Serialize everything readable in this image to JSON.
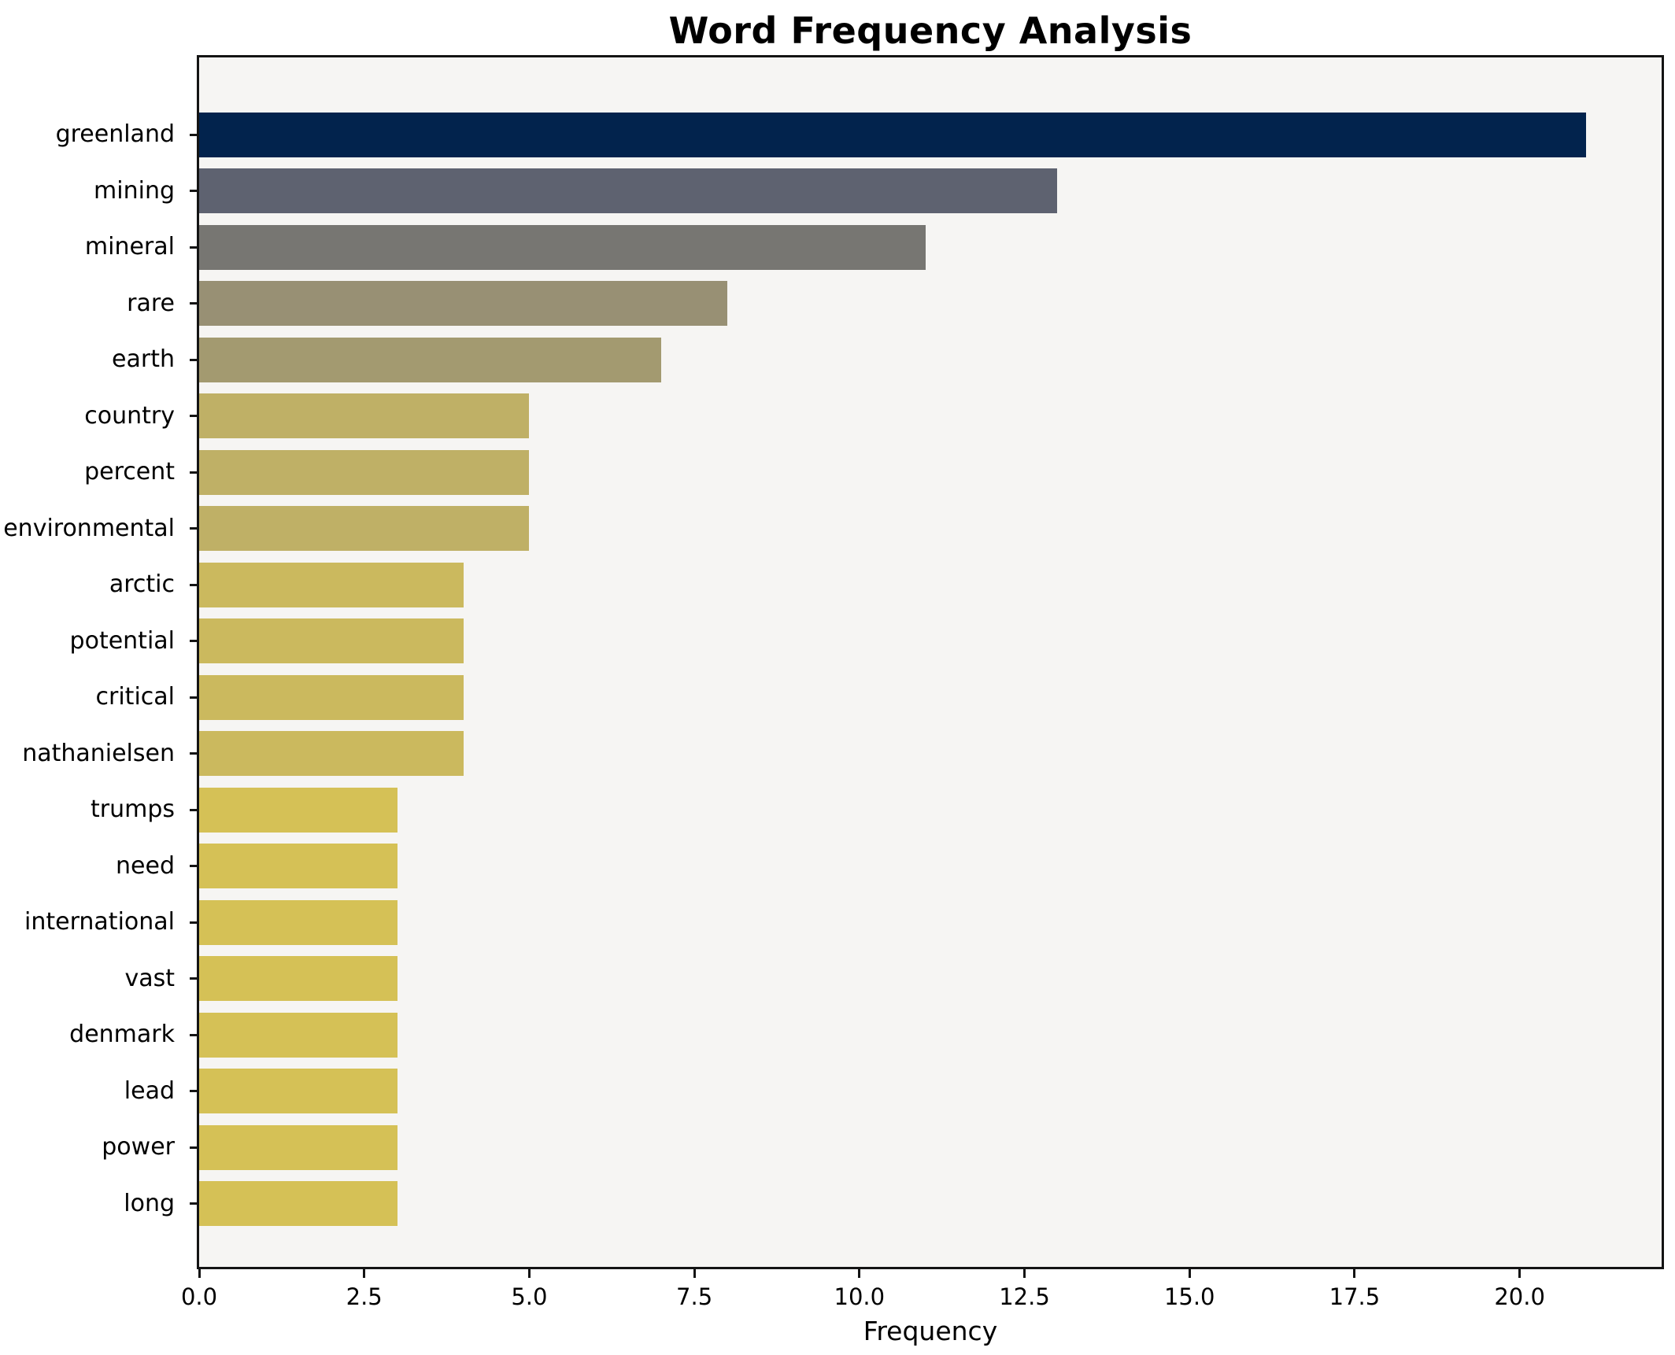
{
  "chart_data": {
    "type": "bar",
    "orientation": "horizontal",
    "title": "Word Frequency Analysis",
    "xlabel": "Frequency",
    "ylabel": "",
    "categories": [
      "greenland",
      "mining",
      "mineral",
      "rare",
      "earth",
      "country",
      "percent",
      "environmental",
      "arctic",
      "potential",
      "critical",
      "nathanielsen",
      "trumps",
      "need",
      "international",
      "vast",
      "denmark",
      "lead",
      "power",
      "long"
    ],
    "values": [
      21,
      13,
      11,
      8,
      7,
      5,
      5,
      5,
      4,
      4,
      4,
      4,
      3,
      3,
      3,
      3,
      3,
      3,
      3,
      3
    ],
    "bar_colors": [
      "#02234d",
      "#5e6270",
      "#777672",
      "#989074",
      "#a39a70",
      "#bfb066",
      "#bfb066",
      "#bfb066",
      "#cbb95e",
      "#cbb95e",
      "#cbb95e",
      "#cbb95e",
      "#d5c156",
      "#d5c156",
      "#d5c156",
      "#d5c156",
      "#d5c156",
      "#d5c156",
      "#d5c156",
      "#d5c156"
    ],
    "x_ticks": [
      "0.0",
      "2.5",
      "5.0",
      "7.5",
      "10.0",
      "12.5",
      "15.0",
      "17.5",
      "20.0"
    ],
    "x_tick_values": [
      0,
      2.5,
      5,
      7.5,
      10,
      12.5,
      15,
      17.5,
      20
    ],
    "xlim": [
      0,
      22.15
    ],
    "grid": false,
    "legend": null,
    "colors": {
      "plot_background": "#f6f5f3",
      "figure_background": "#ffffff",
      "spine": "#141414",
      "text": "#000000"
    }
  }
}
